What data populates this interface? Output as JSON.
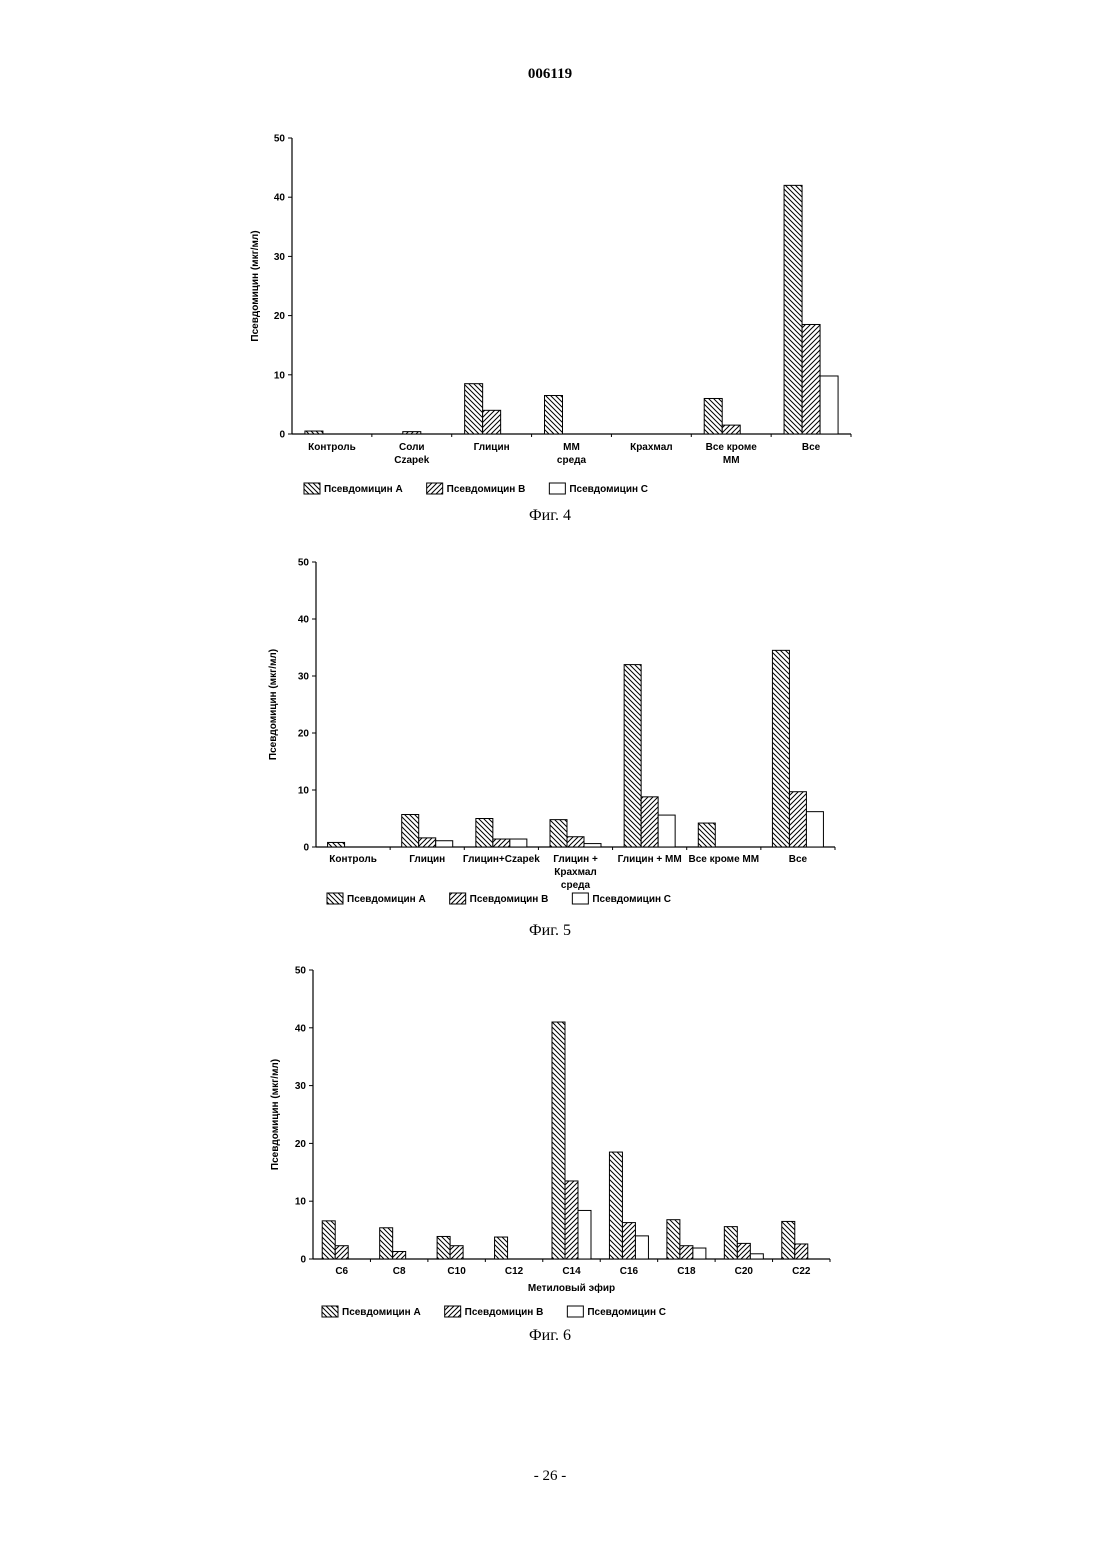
{
  "page": {
    "header": "006119",
    "footer": "- 26 -"
  },
  "colors": {
    "ink": "#000000",
    "paper": "#ffffff"
  },
  "patterns": {
    "A": "hatch-backslash",
    "B": "hatch-slash",
    "C": "empty"
  },
  "chart_data": [
    {
      "type": "bar",
      "caption": "Фиг. 4",
      "ylabel": "Псевдомицин (мкг/мл)",
      "xlabel": "",
      "ylim": [
        0,
        50
      ],
      "yticks": [
        0,
        10,
        20,
        30,
        40,
        50
      ],
      "categories": [
        {
          "lines": [
            "Контроль"
          ]
        },
        {
          "lines": [
            "Соли",
            "Czapek"
          ]
        },
        {
          "lines": [
            "Глицин"
          ]
        },
        {
          "lines": [
            "ММ",
            "среда"
          ]
        },
        {
          "lines": [
            "Крахмал"
          ]
        },
        {
          "lines": [
            "Все кроме",
            "ММ"
          ]
        },
        {
          "lines": [
            "Все"
          ]
        }
      ],
      "series": [
        {
          "name": "Псевдомицин А",
          "key": "A",
          "values": [
            0.5,
            0,
            8.5,
            6.5,
            0,
            6,
            42
          ]
        },
        {
          "name": "Псевдомицин В",
          "key": "B",
          "values": [
            0,
            0.4,
            4,
            0,
            0,
            1.5,
            18.5
          ]
        },
        {
          "name": "Псевдомицин С",
          "key": "C",
          "values": [
            0,
            0,
            0,
            0,
            0,
            0,
            9.8
          ]
        }
      ],
      "legend": "bottom"
    },
    {
      "type": "bar",
      "caption": "Фиг. 5",
      "ylabel": "Псевдомицин (мкг/мл)",
      "xlabel": "",
      "ylim": [
        0,
        50
      ],
      "yticks": [
        0,
        10,
        20,
        30,
        40,
        50
      ],
      "categories": [
        {
          "lines": [
            "Контроль"
          ]
        },
        {
          "lines": [
            "Глицин"
          ]
        },
        {
          "lines": [
            "Глицин+Czapek"
          ]
        },
        {
          "lines": [
            "Глицин +",
            "Крахмал",
            "среда"
          ]
        },
        {
          "lines": [
            "Глицин + ММ"
          ]
        },
        {
          "lines": [
            "Все кроме ММ"
          ]
        },
        {
          "lines": [
            "Все"
          ]
        }
      ],
      "series": [
        {
          "name": "Псевдомицин А",
          "key": "A",
          "values": [
            0.8,
            5.7,
            5,
            4.8,
            32,
            4.2,
            34.5
          ]
        },
        {
          "name": "Псевдомицин В",
          "key": "B",
          "values": [
            0,
            1.6,
            1.4,
            1.8,
            8.8,
            0,
            9.7
          ]
        },
        {
          "name": "Псевдомицин С",
          "key": "C",
          "values": [
            0,
            1.1,
            1.4,
            0.6,
            5.6,
            0,
            6.2
          ]
        }
      ],
      "legend": "bottom"
    },
    {
      "type": "bar",
      "caption": "Фиг. 6",
      "ylabel": "Псевдомицин (мкг/мл)",
      "xlabel": "Метиловый  эфир",
      "ylim": [
        0,
        50
      ],
      "yticks": [
        0,
        10,
        20,
        30,
        40,
        50
      ],
      "categories": [
        {
          "lines": [
            "С6"
          ]
        },
        {
          "lines": [
            "С8"
          ]
        },
        {
          "lines": [
            "С10"
          ]
        },
        {
          "lines": [
            "С12"
          ]
        },
        {
          "lines": [
            "С14"
          ]
        },
        {
          "lines": [
            "С16"
          ]
        },
        {
          "lines": [
            "С18"
          ]
        },
        {
          "lines": [
            "С20"
          ]
        },
        {
          "lines": [
            "С22"
          ]
        }
      ],
      "series": [
        {
          "name": "Псевдомицин А",
          "key": "A",
          "values": [
            6.6,
            5.4,
            3.9,
            3.8,
            41,
            18.5,
            6.8,
            5.6,
            6.5
          ]
        },
        {
          "name": "Псевдомицин В",
          "key": "B",
          "values": [
            2.3,
            1.3,
            2.3,
            0,
            13.5,
            6.3,
            2.3,
            2.7,
            2.6
          ]
        },
        {
          "name": "Псевдомицин С",
          "key": "C",
          "values": [
            0,
            0,
            0,
            0,
            8.4,
            4,
            1.9,
            0.9,
            0
          ]
        }
      ],
      "legend": "bottom"
    }
  ]
}
